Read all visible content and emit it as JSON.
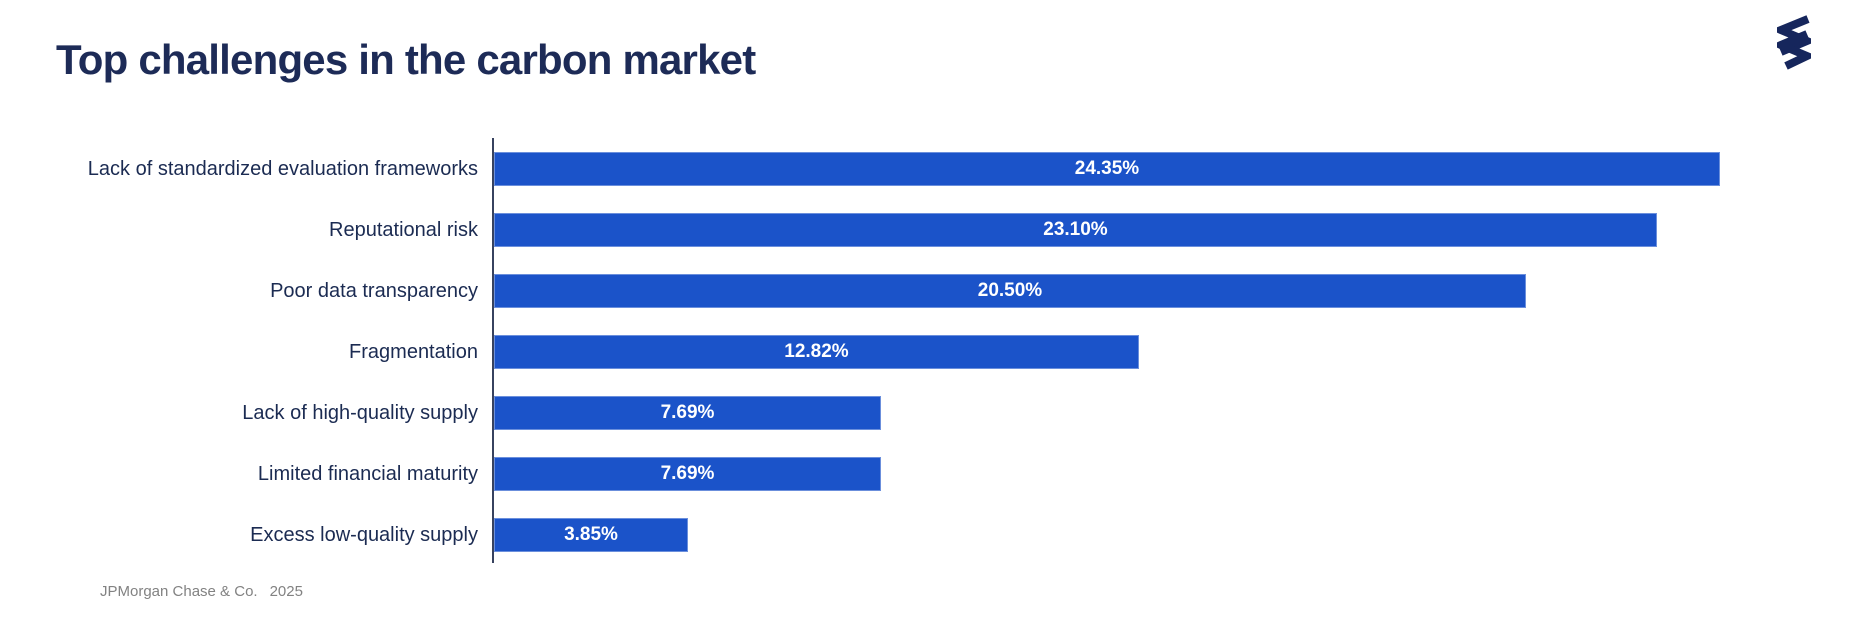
{
  "page": {
    "title": "Top challenges in the carbon market"
  },
  "logo": {
    "name": "double-helix-squiggle"
  },
  "footer": {
    "company": "JPMorgan Chase & Co.",
    "year": "2025"
  },
  "colors": {
    "title": "#1d2b57",
    "label": "#1b2b52",
    "axis": "#37425f",
    "bar_fill": "#1b53c9",
    "bar_border": "#6b8fdc",
    "value_text": "#ffffff",
    "footer_text": "#828282",
    "logo": "#16265c"
  },
  "chart_data": {
    "type": "bar",
    "orientation": "horizontal",
    "title": "Top challenges in the carbon market",
    "categories": [
      "Lack of standardized evaluation frameworks",
      "Reputational risk",
      "Poor data transparency",
      "Fragmentation",
      "Lack of high-quality supply",
      "Limited financial maturity",
      "Excess low-quality supply"
    ],
    "values": [
      24.35,
      23.1,
      20.5,
      12.82,
      7.69,
      7.69,
      3.85
    ],
    "value_labels": [
      "24.35%",
      "23.10%",
      "20.50%",
      "12.82%",
      "7.69%",
      "7.69%",
      "3.85%"
    ],
    "xlabel": "",
    "ylabel": "",
    "xlim": [
      0,
      25.2
    ],
    "grid": false,
    "legend": false,
    "bar_labels_position": "center-inside"
  }
}
